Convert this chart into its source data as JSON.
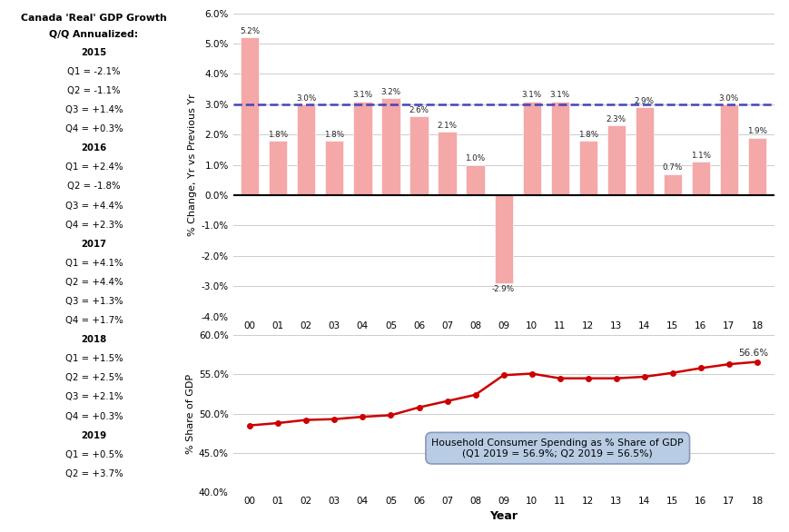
{
  "sidebar_title_line1": "Canada 'Real' GDP Growth",
  "sidebar_title_line2": "Q/Q Annualized:",
  "sidebar_lines": [
    "2015",
    "Q1 = -2.1%",
    "Q2 = -1.1%",
    "Q3 = +1.4%",
    "Q4 = +0.3%",
    "2016",
    "Q1 = +2.4%",
    "Q2 = -1.8%",
    "Q3 = +4.4%",
    "Q4 = +2.3%",
    "2017",
    "Q1 = +4.1%",
    "Q2 = +4.4%",
    "Q3 = +1.3%",
    "Q4 = +1.7%",
    "2018",
    "Q1 = +1.5%",
    "Q2 = +2.5%",
    "Q3 = +2.1%",
    "Q4 = +0.3%",
    "2019",
    "Q1 = +0.5%",
    "Q2 = +3.7%"
  ],
  "sidebar_bg": "#b8cce4",
  "bar_years": [
    "00",
    "01",
    "02",
    "03",
    "04",
    "05",
    "06",
    "07",
    "08",
    "09",
    "10",
    "11",
    "12",
    "13",
    "14",
    "15",
    "16",
    "17",
    "18"
  ],
  "bar_values": [
    5.2,
    1.8,
    3.0,
    1.8,
    3.1,
    3.2,
    2.6,
    2.1,
    1.0,
    -2.9,
    3.1,
    3.1,
    1.8,
    2.3,
    2.9,
    0.7,
    1.1,
    3.0,
    1.9
  ],
  "bar_labels": [
    "5.2%",
    "1.8%",
    "3.0%",
    "1.8%",
    "3.1%",
    "3.2%",
    "2.6%",
    "2.1%",
    "1.0%",
    "-2.9%",
    "3.1%",
    "3.1%",
    "1.8%",
    "2.3%",
    "2.9%",
    "0.7%",
    "1.1%",
    "3.0%",
    "1.9%"
  ],
  "bar_color": "#f4a8a8",
  "dashed_line_y": 3.0,
  "dashed_line_color": "#4444bb",
  "bar_ylabel": "% Change, Yr vs Previous Yr",
  "bar_ylim": [
    -4.0,
    6.0
  ],
  "bar_yticks": [
    -4.0,
    -3.0,
    -2.0,
    -1.0,
    0.0,
    1.0,
    2.0,
    3.0,
    4.0,
    5.0,
    6.0
  ],
  "line_years": [
    "00",
    "01",
    "02",
    "03",
    "04",
    "05",
    "06",
    "07",
    "08",
    "09",
    "10",
    "11",
    "12",
    "13",
    "14",
    "15",
    "16",
    "17",
    "18"
  ],
  "line_values": [
    48.5,
    48.8,
    49.2,
    49.3,
    49.6,
    49.8,
    50.8,
    51.6,
    52.4,
    54.9,
    55.1,
    54.5,
    54.5,
    54.5,
    54.7,
    55.2,
    55.8,
    56.3,
    56.6
  ],
  "line_color": "#cc0000",
  "line_ylabel": "% Share of GDP",
  "line_ylim": [
    40.0,
    60.0
  ],
  "line_yticks": [
    40.0,
    45.0,
    50.0,
    55.0,
    60.0
  ],
  "line_last_label": "56.6%",
  "xlabel": "Year",
  "annotation_text": "Household Consumer Spending as % Share of GDP\n(Q1 2019 = 56.9%; Q2 2019 = 56.5%)",
  "annotation_bg": "#b8cce4",
  "bg_color": "#ffffff",
  "grid_color": "#cccccc"
}
